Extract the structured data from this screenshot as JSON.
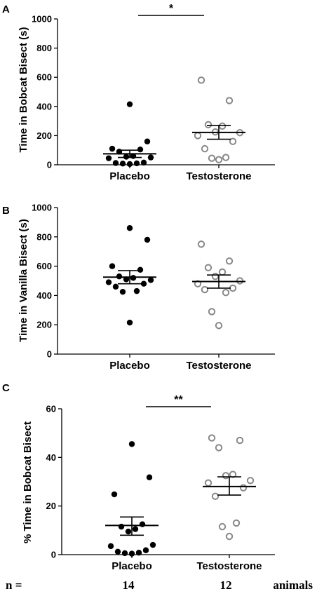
{
  "chart_data": [
    {
      "type": "scatter",
      "panel_label": "A",
      "ylabel": "Time in Bobcat Bisect (s)",
      "ylim": [
        0,
        1000
      ],
      "yticks": [
        "0",
        "200",
        "400",
        "600",
        "800",
        "1000"
      ],
      "categories": [
        "Placebo",
        "Testosterone"
      ],
      "series": [
        {
          "category": "Placebo",
          "marker": "filled",
          "color": "#000000",
          "values": [
            415,
            160,
            110,
            105,
            90,
            60,
            55,
            50,
            45,
            15,
            12,
            10,
            8,
            5
          ],
          "mean": 75,
          "sem_low": 50,
          "sem_high": 100
        },
        {
          "category": "Testosterone",
          "marker": "open",
          "color": "#888888",
          "values": [
            580,
            440,
            275,
            265,
            225,
            220,
            200,
            160,
            110,
            50,
            45,
            35
          ],
          "mean": 222,
          "sem_low": 175,
          "sem_high": 270
        }
      ],
      "significance": "*"
    },
    {
      "type": "scatter",
      "panel_label": "B",
      "ylabel": "Time in Vanilla Bisect (s)",
      "ylim": [
        0,
        1000
      ],
      "yticks": [
        "0",
        "200",
        "400",
        "600",
        "800",
        "1000"
      ],
      "categories": [
        "Placebo",
        "Testosterone"
      ],
      "series": [
        {
          "category": "Placebo",
          "marker": "filled",
          "color": "#000000",
          "values": [
            860,
            780,
            600,
            575,
            530,
            520,
            510,
            505,
            490,
            480,
            460,
            430,
            425,
            215
          ],
          "mean": 525,
          "sem_low": 480,
          "sem_high": 570
        },
        {
          "category": "Testosterone",
          "marker": "open",
          "color": "#888888",
          "values": [
            750,
            635,
            590,
            560,
            530,
            500,
            480,
            450,
            440,
            420,
            290,
            195
          ],
          "mean": 495,
          "sem_low": 450,
          "sem_high": 540
        }
      ],
      "significance": ""
    },
    {
      "type": "scatter",
      "panel_label": "C",
      "ylabel": "% Time in Bobcat Bisect",
      "ylim": [
        0,
        60
      ],
      "yticks": [
        "0",
        "20",
        "40",
        "60"
      ],
      "categories": [
        "Placebo",
        "Testosterone"
      ],
      "series": [
        {
          "category": "Placebo",
          "marker": "filled",
          "color": "#000000",
          "values": [
            45.5,
            31.8,
            24.8,
            12.5,
            11.5,
            10.5,
            9.5,
            4.0,
            3.5,
            1.8,
            1.2,
            0.8,
            0.6,
            0.4
          ],
          "mean": 12.0,
          "sem_low": 8.0,
          "sem_high": 15.5
        },
        {
          "category": "Testosterone",
          "marker": "open",
          "color": "#888888",
          "values": [
            48.0,
            47.0,
            44.0,
            33.0,
            32.5,
            30.5,
            29.5,
            27.5,
            24.0,
            13.0,
            11.5,
            7.5
          ],
          "mean": 28.0,
          "sem_low": 24.5,
          "sem_high": 32.0
        }
      ],
      "significance": "**"
    }
  ],
  "footer": {
    "n_label": "n =",
    "placebo_n": "14",
    "testosterone_n": "12",
    "unit_label": "animals"
  }
}
